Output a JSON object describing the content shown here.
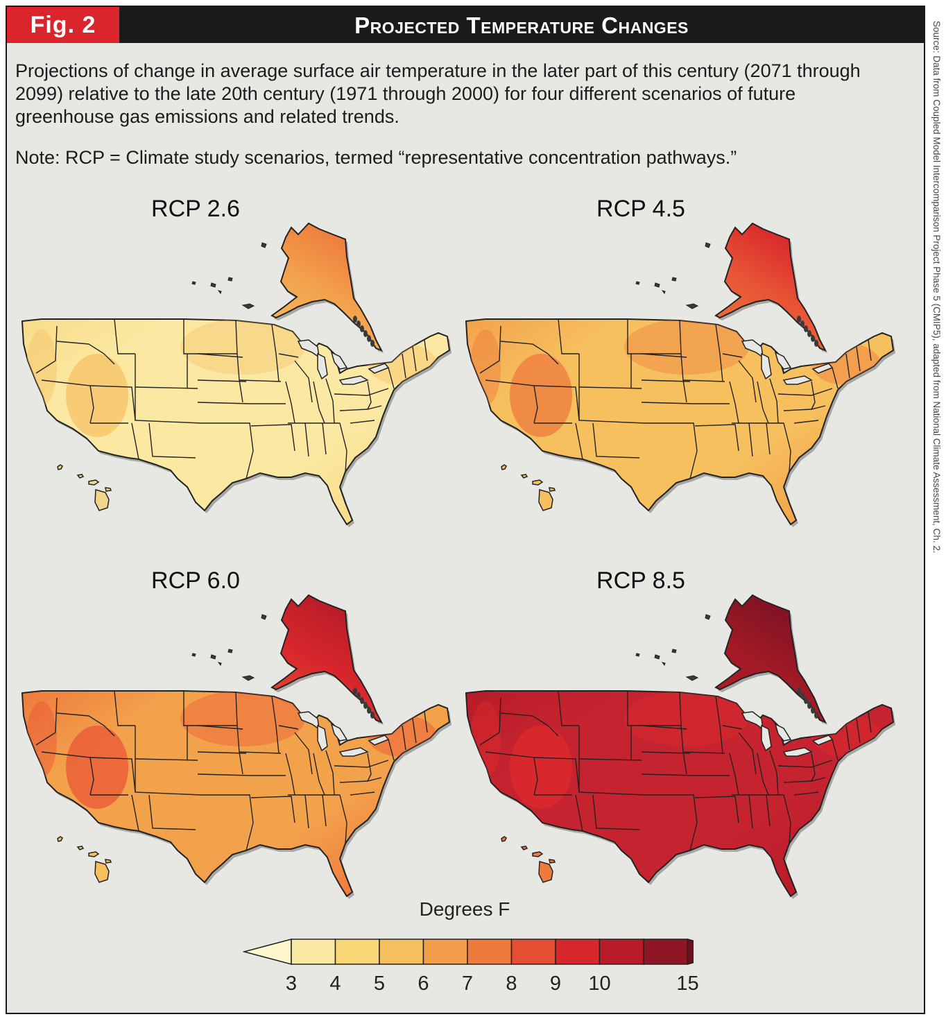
{
  "header": {
    "badge": "Fig. 2",
    "title": "Projected Temperature Changes"
  },
  "description": "Projections of change in average surface air temperature in the later part of this century (2071 through 2099) relative to the late 20th century (1971 through 2000) for four different scenarios of future greenhouse gas emissions and related trends.",
  "note": "Note: RCP = Climate study scenarios, termed “representative concentration pathways.”",
  "source": "Source: Data from Coupled Model Intercomparison Project Phase 5 (CMIP5), adapted from National Climate Assessment, Ch. 2.",
  "maps": [
    {
      "title": "RCP 2.6",
      "palette": {
        "base": "#fbe9a3",
        "mid": "#f8dc8a",
        "hi": "#f6c166",
        "ak1": "#f6c166",
        "ak2": "#f3a24c",
        "ak3": "#ee7a3c",
        "hawaii": "#f0d58c"
      }
    },
    {
      "title": "RCP 4.5",
      "palette": {
        "base": "#f6c05f",
        "mid": "#f3a24c",
        "hi": "#ee7a3c",
        "ak1": "#ee7a3c",
        "ak2": "#e85535",
        "ak3": "#d7262c",
        "hawaii": "#f6c05f"
      }
    },
    {
      "title": "RCP 6.0",
      "palette": {
        "base": "#f3a24c",
        "mid": "#ee7a3c",
        "hi": "#e85535",
        "ak1": "#e85535",
        "ak2": "#d7262c",
        "ak3": "#b71c28",
        "hawaii": "#f6c05f"
      }
    },
    {
      "title": "RCP 8.5",
      "palette": {
        "base": "#c62330",
        "mid": "#b71c28",
        "hi": "#df2b2c",
        "ak1": "#b71c28",
        "ak2": "#a01a25",
        "ak3": "#7d1224",
        "hawaii": "#ee7a3c"
      }
    }
  ],
  "legend": {
    "title": "Degrees F",
    "ticks": [
      "3",
      "4",
      "5",
      "6",
      "7",
      "8",
      "9",
      "10",
      "15"
    ],
    "colors": [
      "#fff7cc",
      "#fbe9a3",
      "#f8d676",
      "#f6bf5e",
      "#f29e4a",
      "#ee7a3c",
      "#e54e33",
      "#d7262c",
      "#b71c28",
      "#8e1625",
      "#6a0f1e"
    ]
  }
}
